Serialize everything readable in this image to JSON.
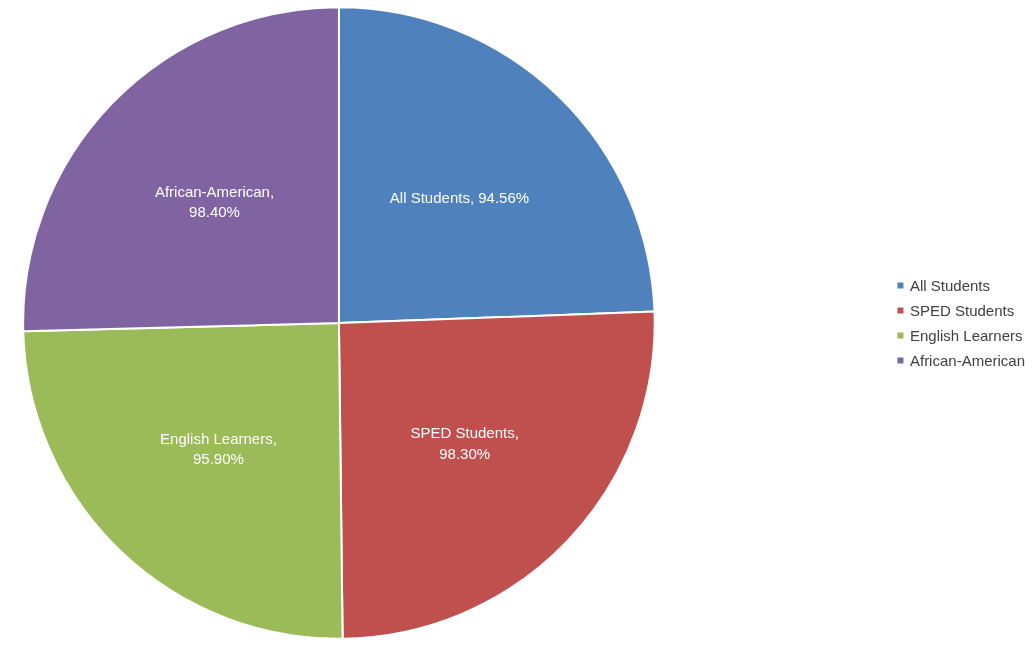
{
  "chart_data": {
    "type": "pie",
    "categories": [
      "All Students",
      "SPED Students",
      "English Learners",
      "African-American"
    ],
    "values": [
      94.56,
      98.3,
      95.9,
      98.4
    ],
    "colors": [
      "#4f81bd",
      "#c0504d",
      "#9bbb59",
      "#8064a2"
    ],
    "value_labels": [
      "All Students, 94.56%",
      "SPED Students, 98.30%",
      "English Learners, 95.90%",
      "African-American, 98.40%"
    ],
    "legend": "right"
  }
}
